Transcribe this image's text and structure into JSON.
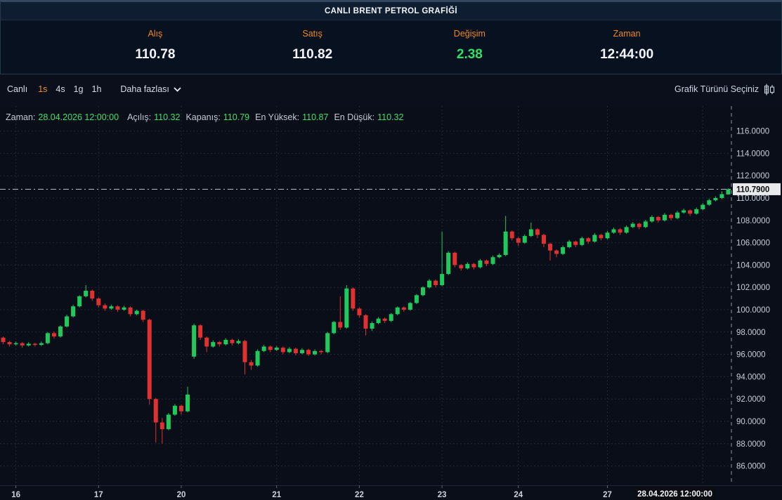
{
  "title": "CANLI BRENT PETROL GRAFİĞİ",
  "stats": {
    "items": [
      {
        "label": "Alış",
        "value": "110.78",
        "color": "white"
      },
      {
        "label": "Satış",
        "value": "110.82",
        "color": "white"
      },
      {
        "label": "Değişim",
        "value": "2.38",
        "color": "green"
      },
      {
        "label": "Zaman",
        "value": "12:44:00",
        "color": "white"
      }
    ]
  },
  "toolbar": {
    "live_label": "Canlı",
    "intervals": [
      "1s",
      "4s",
      "1g",
      "1h"
    ],
    "selected_interval": "1s",
    "more_label": "Daha fazlası",
    "chart_type_label": "Grafik Türünü Seçiniz"
  },
  "legend": {
    "items": [
      {
        "label": "Zaman:",
        "value": "28.04.2026 12:00:00"
      },
      {
        "label": "Açılış:",
        "value": "110.32"
      },
      {
        "label": "Kapanış:",
        "value": "110.79"
      },
      {
        "label": "En Yüksek:",
        "value": "110.87"
      },
      {
        "label": "En Düşük:",
        "value": "110.32"
      }
    ]
  },
  "chart_data": {
    "type": "candlestick",
    "title": "Brent crude oil live candlestick chart",
    "y_min": 86,
    "y_max": 116,
    "y_step": 2,
    "y_decimals": 4,
    "current_price": 110.79,
    "current_price_label": "110.7900",
    "current_date_label": "28.04.2026   12:00:00",
    "x_ticks": [
      {
        "index": 2,
        "label": "16"
      },
      {
        "index": 15,
        "label": "17"
      },
      {
        "index": 28,
        "label": "20"
      },
      {
        "index": 43,
        "label": "21"
      },
      {
        "index": 56,
        "label": "22"
      },
      {
        "index": 69,
        "label": "23"
      },
      {
        "index": 81,
        "label": "24"
      },
      {
        "index": 95,
        "label": "27"
      },
      {
        "index": 110,
        "label": ""
      }
    ],
    "colors": {
      "up": "#1fc95c",
      "down": "#e03131",
      "grid": "#1e2839",
      "axis_line": "#8d96a6",
      "axis_text": "#c7ced9",
      "price_line": "#b6bcc9",
      "price_tag_bg": "#e9eaec",
      "price_tag_text": "#0a0c10",
      "date_tag_bg": "#0b0d13",
      "date_tag_text": "#f0f3f8",
      "accent_orange": "#ee8a1a",
      "value_green": "#2ee065"
    },
    "candles": [
      [
        97.5,
        97.6,
        96.9,
        97.1
      ],
      [
        97.1,
        97.2,
        96.7,
        96.9
      ],
      [
        96.9,
        97.15,
        96.8,
        97.0
      ],
      [
        97.0,
        97.1,
        96.6,
        96.8
      ],
      [
        96.8,
        97.1,
        96.7,
        96.95
      ],
      [
        96.95,
        97.05,
        96.7,
        96.85
      ],
      [
        96.85,
        97.15,
        96.75,
        97.0
      ],
      [
        97.0,
        98.0,
        96.9,
        97.9
      ],
      [
        97.9,
        98.05,
        97.4,
        97.6
      ],
      [
        97.6,
        98.6,
        97.5,
        98.5
      ],
      [
        98.5,
        99.55,
        98.4,
        99.4
      ],
      [
        99.4,
        100.45,
        99.3,
        100.3
      ],
      [
        100.3,
        101.3,
        100.2,
        101.2
      ],
      [
        101.2,
        102.2,
        101.1,
        101.7
      ],
      [
        101.7,
        101.8,
        100.8,
        101.0
      ],
      [
        101.0,
        101.1,
        100.2,
        100.4
      ],
      [
        100.4,
        100.55,
        99.9,
        100.1
      ],
      [
        100.1,
        100.45,
        100.0,
        100.3
      ],
      [
        100.3,
        100.4,
        99.8,
        100.0
      ],
      [
        100.0,
        100.35,
        99.9,
        100.2
      ],
      [
        100.2,
        100.3,
        99.4,
        99.6
      ],
      [
        99.6,
        100.0,
        99.5,
        99.9
      ],
      [
        99.9,
        100.0,
        98.9,
        99.1
      ],
      [
        99.1,
        99.2,
        91.5,
        92.0
      ],
      [
        92.0,
        92.1,
        88.1,
        89.9
      ],
      [
        89.9,
        90.3,
        88.0,
        89.3
      ],
      [
        89.3,
        90.75,
        89.2,
        90.6
      ],
      [
        90.6,
        91.55,
        90.5,
        91.4
      ],
      [
        91.4,
        91.5,
        90.6,
        90.9
      ],
      [
        90.9,
        93.1,
        90.8,
        92.4
      ],
      [
        95.8,
        98.75,
        95.6,
        98.6
      ],
      [
        98.6,
        98.7,
        97.3,
        97.5
      ],
      [
        97.5,
        97.6,
        96.2,
        96.7
      ],
      [
        96.7,
        97.25,
        96.6,
        97.1
      ],
      [
        97.1,
        97.2,
        96.7,
        96.9
      ],
      [
        96.9,
        97.45,
        96.8,
        97.3
      ],
      [
        97.3,
        97.4,
        96.8,
        97.0
      ],
      [
        97.0,
        97.35,
        96.9,
        97.2
      ],
      [
        97.2,
        97.3,
        94.2,
        95.3
      ],
      [
        95.3,
        95.5,
        94.6,
        95.0
      ],
      [
        95.0,
        96.45,
        94.9,
        96.3
      ],
      [
        96.3,
        96.85,
        96.2,
        96.7
      ],
      [
        96.7,
        96.8,
        96.2,
        96.4
      ],
      [
        96.4,
        96.75,
        96.3,
        96.6
      ],
      [
        96.6,
        96.7,
        96.0,
        96.2
      ],
      [
        96.2,
        96.65,
        96.1,
        96.5
      ],
      [
        96.5,
        96.6,
        95.9,
        96.1
      ],
      [
        96.1,
        96.55,
        96.0,
        96.4
      ],
      [
        96.4,
        96.5,
        95.85,
        96.0
      ],
      [
        96.0,
        96.45,
        95.9,
        96.3
      ],
      [
        96.3,
        96.4,
        96.0,
        96.2
      ],
      [
        96.2,
        98.0,
        96.1,
        97.9
      ],
      [
        97.9,
        99.0,
        97.8,
        98.9
      ],
      [
        98.9,
        101.2,
        98.2,
        98.4
      ],
      [
        98.4,
        102.2,
        98.3,
        101.9
      ],
      [
        101.9,
        102.0,
        99.9,
        100.1
      ],
      [
        100.1,
        100.2,
        99.3,
        99.5
      ],
      [
        99.5,
        99.6,
        97.7,
        98.3
      ],
      [
        98.3,
        98.95,
        98.1,
        98.8
      ],
      [
        98.8,
        99.35,
        98.7,
        99.2
      ],
      [
        99.2,
        99.3,
        98.8,
        99.0
      ],
      [
        99.0,
        99.7,
        98.9,
        99.6
      ],
      [
        99.6,
        100.3,
        99.5,
        100.2
      ],
      [
        100.2,
        100.3,
        99.8,
        100.0
      ],
      [
        100.0,
        100.7,
        99.9,
        100.6
      ],
      [
        100.6,
        101.4,
        100.5,
        101.3
      ],
      [
        101.3,
        102.1,
        101.2,
        102.0
      ],
      [
        102.0,
        102.75,
        101.9,
        102.6
      ],
      [
        102.6,
        102.7,
        102.0,
        102.2
      ],
      [
        102.2,
        107.0,
        102.1,
        103.2
      ],
      [
        103.2,
        105.25,
        103.1,
        105.1
      ],
      [
        105.1,
        105.2,
        103.8,
        104.0
      ],
      [
        104.0,
        104.1,
        103.5,
        103.7
      ],
      [
        103.7,
        104.25,
        103.6,
        104.1
      ],
      [
        104.1,
        104.2,
        103.6,
        103.8
      ],
      [
        103.8,
        104.55,
        103.7,
        104.4
      ],
      [
        104.4,
        104.5,
        103.9,
        104.1
      ],
      [
        104.1,
        104.85,
        104.0,
        104.7
      ],
      [
        104.7,
        105.05,
        104.6,
        104.9
      ],
      [
        104.9,
        108.4,
        104.8,
        107.0
      ],
      [
        107.0,
        107.1,
        106.2,
        106.4
      ],
      [
        106.4,
        106.5,
        105.7,
        106.0
      ],
      [
        106.0,
        106.75,
        105.9,
        106.6
      ],
      [
        106.6,
        107.8,
        106.5,
        107.2
      ],
      [
        107.2,
        107.3,
        106.4,
        106.7
      ],
      [
        106.7,
        106.8,
        105.6,
        105.9
      ],
      [
        105.9,
        106.0,
        104.4,
        105.3
      ],
      [
        105.3,
        105.4,
        104.7,
        105.0
      ],
      [
        105.0,
        105.75,
        104.9,
        105.6
      ],
      [
        105.6,
        106.25,
        105.5,
        106.1
      ],
      [
        106.1,
        106.2,
        105.6,
        105.8
      ],
      [
        105.8,
        106.55,
        105.7,
        106.4
      ],
      [
        106.4,
        106.5,
        105.9,
        106.1
      ],
      [
        106.1,
        106.85,
        106.0,
        106.7
      ],
      [
        106.7,
        106.8,
        106.2,
        106.4
      ],
      [
        106.4,
        107.05,
        106.3,
        106.9
      ],
      [
        106.9,
        107.35,
        106.8,
        107.2
      ],
      [
        107.2,
        107.3,
        106.7,
        106.9
      ],
      [
        106.9,
        107.55,
        106.8,
        107.4
      ],
      [
        107.4,
        107.85,
        107.3,
        107.7
      ],
      [
        107.7,
        107.8,
        107.2,
        107.4
      ],
      [
        107.4,
        108.05,
        107.3,
        107.9
      ],
      [
        107.9,
        108.45,
        107.8,
        108.3
      ],
      [
        108.3,
        108.4,
        107.8,
        108.0
      ],
      [
        108.0,
        108.65,
        107.9,
        108.5
      ],
      [
        108.5,
        108.6,
        108.0,
        108.2
      ],
      [
        108.2,
        108.85,
        108.1,
        108.7
      ],
      [
        108.7,
        109.05,
        108.6,
        108.9
      ],
      [
        108.9,
        109.0,
        108.4,
        108.6
      ],
      [
        108.6,
        109.15,
        108.5,
        109.0
      ],
      [
        109.0,
        109.55,
        108.9,
        109.4
      ],
      [
        109.4,
        109.95,
        109.3,
        109.8
      ],
      [
        109.8,
        110.15,
        109.7,
        110.0
      ],
      [
        110.0,
        110.6,
        109.9,
        110.35
      ],
      [
        110.32,
        110.87,
        110.32,
        110.79
      ]
    ]
  }
}
